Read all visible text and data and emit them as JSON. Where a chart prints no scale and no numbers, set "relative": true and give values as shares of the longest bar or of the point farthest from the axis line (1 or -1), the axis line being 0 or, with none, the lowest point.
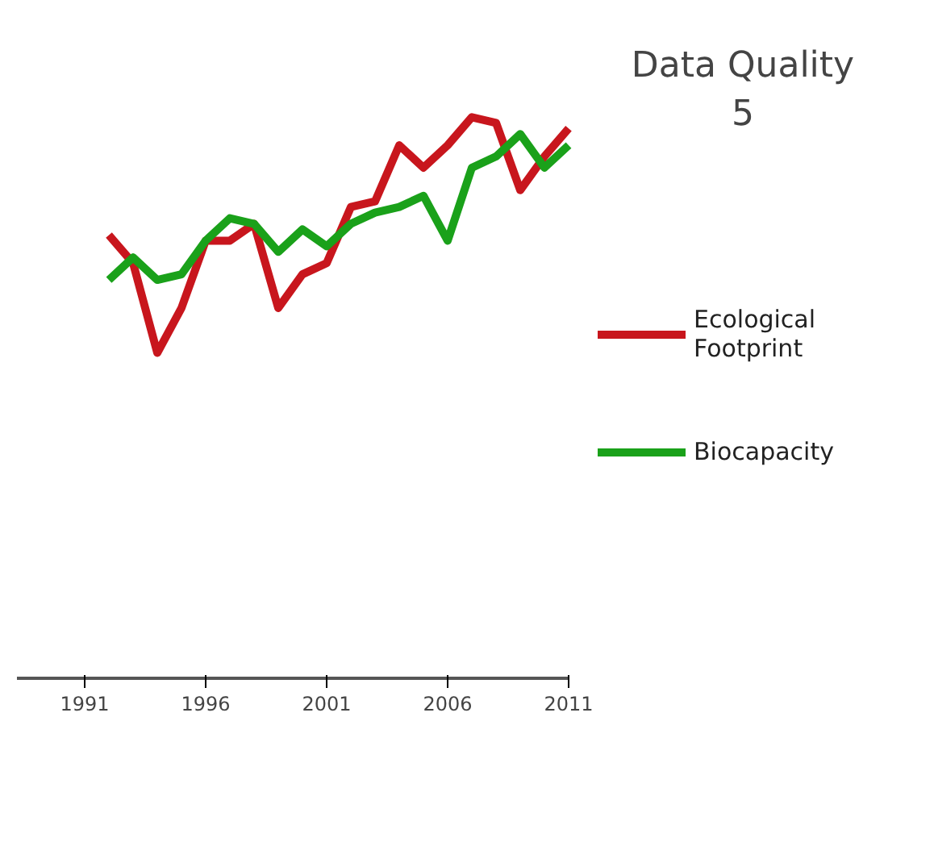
{
  "chart_data": {
    "type": "line",
    "title": "Data Quality\n5",
    "relative": true,
    "x": [
      1992,
      1993,
      1994,
      1995,
      1996,
      1997,
      1998,
      1999,
      2000,
      2001,
      2002,
      2003,
      2004,
      2005,
      2006,
      2007,
      2008,
      2009,
      2010,
      2011
    ],
    "xlim": [
      1988.2,
      2011
    ],
    "xticks": [
      1991,
      1996,
      2001,
      2006,
      2011
    ],
    "series": [
      {
        "name": "Ecological\nFootprint",
        "color": "#c8161d",
        "values": [
          0.79,
          0.74,
          0.58,
          0.66,
          0.78,
          0.78,
          0.81,
          0.66,
          0.72,
          0.74,
          0.84,
          0.85,
          0.95,
          0.91,
          0.95,
          1,
          0.99,
          0.87,
          0.93,
          0.98
        ]
      },
      {
        "name": "Biocapacity",
        "color": "#1aa11a",
        "values": [
          0.71,
          0.75,
          0.71,
          0.72,
          0.78,
          0.82,
          0.81,
          0.76,
          0.8,
          0.77,
          0.81,
          0.83,
          0.84,
          0.86,
          0.78,
          0.91,
          0.93,
          0.97,
          0.91,
          0.95
        ]
      }
    ],
    "legend": "right",
    "grid": false,
    "line_style": "solid",
    "marker": "none"
  }
}
